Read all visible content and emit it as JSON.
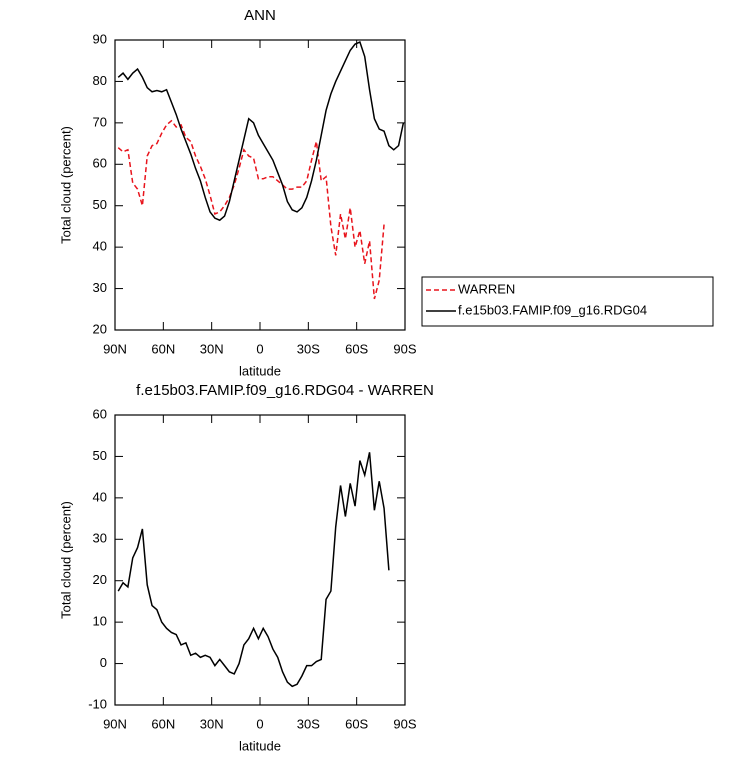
{
  "chart_data": [
    {
      "type": "line",
      "title": "ANN",
      "xlabel": "latitude",
      "ylabel": "Total cloud (percent)",
      "x": [
        88,
        85,
        82,
        79,
        76,
        73,
        70,
        67,
        64,
        61,
        58,
        55,
        52,
        49,
        46,
        43,
        40,
        37,
        34,
        31,
        28,
        25,
        22,
        19,
        16,
        13,
        10,
        7,
        4,
        1,
        -2,
        -5,
        -8,
        -11,
        -14,
        -17,
        -20,
        -23,
        -26,
        -29,
        -32,
        -35,
        -38,
        -41,
        -44,
        -47,
        -50,
        -53,
        -56,
        -59,
        -62,
        -65,
        -68,
        -71,
        -74,
        -77,
        -80,
        -83,
        -86,
        -89
      ],
      "series": [
        {
          "name": "WARREN",
          "color": "#e8141c",
          "dashed": true,
          "values": [
            64,
            63,
            63.5,
            55.5,
            54,
            50,
            62,
            64.5,
            65,
            67.5,
            69.5,
            70.5,
            69,
            69.5,
            66.5,
            65.5,
            62,
            59.5,
            56.5,
            52.5,
            48,
            48.5,
            50,
            52,
            55,
            59,
            63.5,
            62,
            61.5,
            56.5,
            56.5,
            57,
            57,
            56,
            55,
            54,
            54,
            54.5,
            54.5,
            56,
            61,
            65.5,
            56,
            57,
            45,
            38,
            48,
            42,
            49.5,
            40,
            44,
            36,
            41.5,
            27.5,
            32,
            45.5,
            null,
            null,
            null,
            null
          ]
        },
        {
          "name": "f.e15b03.FAMIP.f09_g16.RDG04",
          "color": "#000000",
          "dashed": false,
          "values": [
            81,
            82,
            80.5,
            82,
            83,
            81,
            78.5,
            77.5,
            77.8,
            77.5,
            78,
            75,
            72,
            68.5,
            65.5,
            62.5,
            59,
            56,
            52,
            48.5,
            47,
            46.5,
            47.5,
            51,
            56,
            61,
            66,
            71,
            70,
            67,
            65,
            63,
            61,
            58,
            55,
            51,
            49,
            48.5,
            49.5,
            52,
            56,
            61,
            67,
            73,
            77,
            80,
            82.5,
            85,
            87.5,
            89,
            89.5,
            86,
            78,
            71,
            68.5,
            68,
            64.5,
            63.5,
            64.5,
            70
          ]
        }
      ],
      "xlim": [
        90,
        -90
      ],
      "xticks": [
        {
          "value": 90,
          "label": "90N"
        },
        {
          "value": 60,
          "label": "60N"
        },
        {
          "value": 30,
          "label": "30N"
        },
        0,
        {
          "value": -30,
          "label": "30S"
        },
        {
          "value": -60,
          "label": "60S"
        },
        {
          "value": -90,
          "label": "90S"
        }
      ],
      "ylim": [
        20,
        90
      ],
      "yticks": [
        20,
        30,
        40,
        50,
        60,
        70,
        80,
        90
      ],
      "legend": "right"
    },
    {
      "type": "line",
      "title": "f.e15b03.FAMIP.f09_g16.RDG04 - WARREN",
      "xlabel": "latitude",
      "ylabel": "Total cloud (percent)",
      "x": [
        88,
        85,
        82,
        79,
        76,
        73,
        70,
        67,
        64,
        61,
        58,
        55,
        52,
        49,
        46,
        43,
        40,
        37,
        34,
        31,
        28,
        25,
        22,
        19,
        16,
        13,
        10,
        7,
        4,
        1,
        -2,
        -5,
        -8,
        -11,
        -14,
        -17,
        -20,
        -23,
        -26,
        -29,
        -32,
        -35,
        -38,
        -41,
        -44,
        -47,
        -50,
        -53,
        -56,
        -59,
        -62,
        -65,
        -68,
        -71,
        -74,
        -77,
        -80
      ],
      "series": [
        {
          "color": "#000000",
          "dashed": false,
          "values": [
            17.5,
            19.5,
            18.5,
            25.5,
            28,
            32.5,
            19,
            14,
            13,
            10,
            8.5,
            7.5,
            7,
            4.5,
            5,
            2,
            2.5,
            1.5,
            2,
            1.5,
            -0.5,
            1,
            -0.5,
            -2,
            -2.5,
            0,
            4.5,
            6,
            8.5,
            6,
            8.5,
            6.5,
            3.5,
            1.5,
            -2,
            -4.5,
            -5.5,
            -5,
            -3,
            -0.5,
            -0.5,
            0.5,
            1,
            15.5,
            17.5,
            33,
            43,
            35.5,
            43.5,
            38,
            49,
            45.5,
            51,
            37,
            44,
            37.5,
            22.5
          ]
        }
      ],
      "xlim": [
        90,
        -90
      ],
      "xticks": [
        {
          "value": 90,
          "label": "90N"
        },
        {
          "value": 60,
          "label": "60N"
        },
        {
          "value": 30,
          "label": "30N"
        },
        0,
        {
          "value": -30,
          "label": "30S"
        },
        {
          "value": -60,
          "label": "60S"
        },
        {
          "value": -90,
          "label": "90S"
        }
      ],
      "ylim": [
        -10,
        60
      ],
      "yticks": [
        -10,
        0,
        10,
        20,
        30,
        40,
        50,
        60
      ]
    }
  ]
}
